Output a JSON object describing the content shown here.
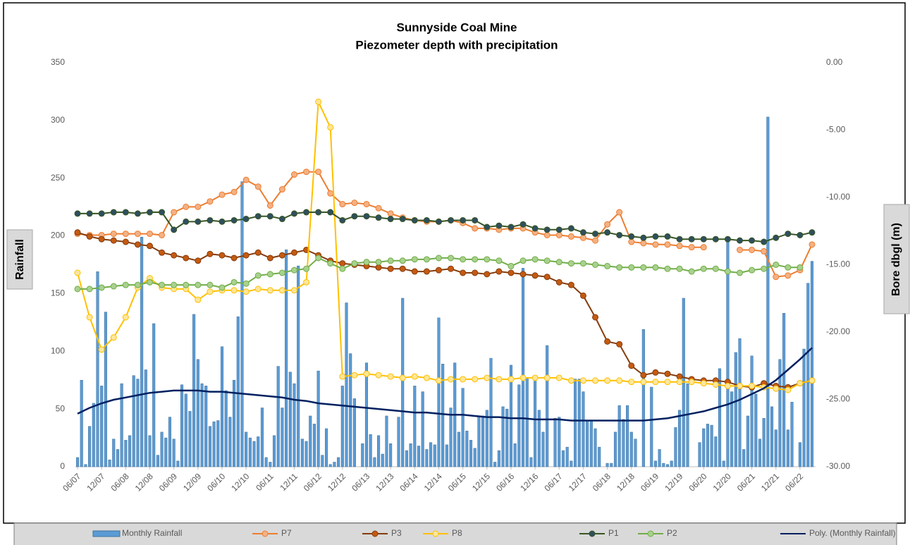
{
  "chart_data": {
    "type": "bar-line",
    "title": "Sunnyside Coal Mine",
    "subtitle": "Piezometer depth with precipitation",
    "ylabel": "Rainfall",
    "y2label": "Bore dbgl (m)",
    "grid": false,
    "legend": "bottom",
    "ylim": [
      0,
      350
    ],
    "yticks": [
      0,
      50,
      100,
      150,
      200,
      250,
      300,
      350
    ],
    "y2lim": [
      -30,
      0
    ],
    "y2ticks": [
      {
        "value": 0,
        "label": "0.00"
      },
      {
        "value": -5,
        "label": "-5.00"
      },
      {
        "value": -10,
        "label": "-10.00"
      },
      {
        "value": -15,
        "label": "-15.00"
      },
      {
        "value": -20,
        "label": "-20.00"
      },
      {
        "value": -25,
        "label": "-25.00"
      },
      {
        "value": -30,
        "label": "-30.00"
      }
    ],
    "categories": [
      "06/07",
      null,
      null,
      null,
      null,
      null,
      "12/07",
      null,
      null,
      null,
      null,
      null,
      "06/08",
      null,
      null,
      null,
      null,
      null,
      "12/08",
      null,
      null,
      null,
      null,
      null,
      "06/09",
      null,
      null,
      null,
      null,
      null,
      "12/09",
      null,
      null,
      null,
      null,
      null,
      "06/10",
      null,
      null,
      null,
      null,
      null,
      "12/10",
      null,
      null,
      null,
      null,
      null,
      "06/11",
      null,
      null,
      null,
      null,
      null,
      "12/11",
      null,
      null,
      null,
      null,
      null,
      "06/12",
      null,
      null,
      null,
      null,
      null,
      "12/12",
      null,
      null,
      null,
      null,
      null,
      "06/13",
      null,
      null,
      null,
      null,
      null,
      "12/13",
      null,
      null,
      null,
      null,
      null,
      "06/14",
      null,
      null,
      null,
      null,
      null,
      "12/14",
      null,
      null,
      null,
      null,
      null,
      "06/15",
      null,
      null,
      null,
      null,
      null,
      "12/15",
      null,
      null,
      null,
      null,
      null,
      "06/16",
      null,
      null,
      null,
      null,
      null,
      "12/16",
      null,
      null,
      null,
      null,
      null,
      "06/17",
      null,
      null,
      null,
      null,
      null,
      "12/17",
      null,
      null,
      null,
      null,
      null,
      "06/18",
      null,
      null,
      null,
      null,
      null,
      "12/18",
      null,
      null,
      null,
      null,
      null,
      "06/19",
      null,
      null,
      null,
      null,
      null,
      "12/19",
      null,
      null,
      null,
      null,
      null,
      "06/20",
      null,
      null,
      null,
      null,
      null,
      "12/20",
      null,
      null,
      null,
      null,
      null,
      "06/21",
      null,
      null,
      null,
      null,
      null,
      "12/21",
      null,
      null,
      null,
      null,
      null,
      "06/22",
      null,
      null,
      null
    ],
    "x": [
      "06/07",
      "09/07",
      "12/07",
      "03/08",
      "06/08",
      "09/08",
      "12/08",
      "03/09",
      "06/09",
      "09/09",
      "12/09",
      "03/10",
      "06/10",
      "09/10",
      "12/10",
      "03/11",
      "06/11",
      "09/11",
      "12/11",
      "03/12",
      "06/12",
      "09/12",
      "12/12",
      "03/13",
      "06/13",
      "09/13",
      "12/13",
      "03/14",
      "06/14",
      "09/14",
      "12/14",
      "03/15",
      "06/15",
      "09/15",
      "12/15",
      "03/16",
      "06/16",
      "09/16",
      "12/16",
      "03/17",
      "06/17",
      "09/17",
      "12/17",
      "03/18",
      "06/18",
      "09/18",
      "12/18",
      "03/19",
      "06/19",
      "09/19",
      "12/19",
      "03/20",
      "06/20",
      "09/20",
      "12/20",
      "03/21",
      "06/21",
      "09/21",
      "12/21",
      "03/22",
      "06/22",
      "09/22"
    ],
    "series": [
      {
        "name": "Monthly Rainfall",
        "type": "bar",
        "axis": "y",
        "color": "#5b9bd5",
        "values": [
          8,
          75,
          2,
          35,
          55,
          169,
          70,
          134,
          6,
          24,
          15,
          72,
          23,
          27,
          79,
          76,
          199,
          84,
          27,
          124,
          10,
          30,
          25,
          43,
          24,
          5,
          71,
          63,
          48,
          132,
          93,
          72,
          70,
          35,
          39,
          40,
          104,
          66,
          43,
          75,
          130,
          247,
          30,
          25,
          22,
          26,
          51,
          8,
          4,
          27,
          87,
          51,
          188,
          82,
          72,
          174,
          24,
          22,
          44,
          37,
          83,
          10,
          33,
          2,
          4,
          8,
          70,
          142,
          98,
          59,
          0,
          20,
          90,
          28,
          8,
          27,
          11,
          44,
          20,
          0,
          43,
          146,
          14,
          20,
          70,
          18,
          65,
          15,
          21,
          19,
          129,
          89,
          19,
          51,
          90,
          30,
          68,
          31,
          23,
          16,
          44,
          44,
          49,
          94,
          4,
          14,
          52,
          50,
          88,
          20,
          71,
          172,
          77,
          8,
          79,
          49,
          30,
          105,
          0,
          42,
          43,
          14,
          17,
          5,
          76,
          76,
          65,
          40,
          40,
          33,
          17,
          0,
          3,
          3,
          30,
          53,
          41,
          53,
          30,
          24,
          0,
          119,
          0,
          69,
          5,
          15,
          3,
          2,
          5,
          34,
          49,
          146,
          72,
          0,
          0,
          21,
          33,
          37,
          36,
          26,
          85,
          5,
          196,
          65,
          99,
          111,
          15,
          44,
          96,
          63,
          24,
          42,
          303,
          52,
          32,
          93,
          133,
          32,
          56,
          0,
          21,
          102,
          159,
          178
        ]
      },
      {
        "name": "P7",
        "type": "line",
        "axis": "y2",
        "color": "#ed7d31",
        "marker_color": "#f4b183",
        "values": [
          -12.7,
          -12.8,
          -12.8,
          -12.7,
          -12.7,
          -12.7,
          -12.7,
          -12.8,
          -11.1,
          -10.7,
          -10.7,
          -10.3,
          -9.8,
          -9.6,
          -8.7,
          -9.2,
          -10.6,
          -9.4,
          -8.3,
          -8.1,
          -8.1,
          -9.7,
          -10.5,
          -10.4,
          -10.5,
          -10.8,
          -11.2,
          -11.5,
          -11.7,
          -11.8,
          -11.8,
          -11.7,
          -11.9,
          -12.3,
          -12.3,
          -12.4,
          -12.3,
          -12.3,
          -12.6,
          -12.8,
          -12.8,
          -12.9,
          -13.0,
          -13.2,
          -12.0,
          -11.1,
          -13.3,
          -13.4,
          -13.5,
          -13.5,
          -13.6,
          -13.7,
          -13.7,
          null,
          null,
          -13.9,
          -13.9,
          -14.0,
          -15.9,
          -15.8,
          -15.4,
          -13.5
        ]
      },
      {
        "name": "P3",
        "type": "line",
        "axis": "y2",
        "color": "#843c0c",
        "marker_color": "#c55a11",
        "values": [
          -12.6,
          -12.9,
          -13.1,
          -13.2,
          -13.3,
          -13.5,
          -13.6,
          -14.1,
          -14.3,
          -14.5,
          -14.7,
          -14.2,
          -14.3,
          -14.5,
          -14.3,
          -14.1,
          -14.5,
          -14.3,
          -14.1,
          -13.9,
          -14.3,
          -14.7,
          -14.9,
          -15.0,
          -15.1,
          -15.2,
          -15.3,
          -15.3,
          -15.5,
          -15.5,
          -15.4,
          -15.3,
          -15.6,
          -15.6,
          -15.7,
          -15.5,
          -15.6,
          -15.7,
          -15.8,
          -15.9,
          -16.3,
          -16.5,
          -17.3,
          -18.9,
          -20.7,
          -20.9,
          -22.5,
          -23.2,
          -23.0,
          -23.1,
          -23.3,
          -23.5,
          -23.6,
          -23.6,
          -23.7,
          -24.0,
          -24.1,
          -23.8,
          -24.0,
          -24.1,
          -23.8,
          -23.6
        ]
      },
      {
        "name": "P8",
        "type": "line",
        "axis": "y2",
        "color": "#ffc000",
        "marker_color": "#ffe699",
        "values": [
          -15.6,
          -18.9,
          -21.3,
          -20.4,
          -18.9,
          -16.7,
          -16.0,
          -16.7,
          -16.8,
          -16.8,
          -17.6,
          -17.0,
          -16.9,
          -16.9,
          -17.0,
          -16.8,
          -16.9,
          -16.9,
          -16.9,
          -16.3,
          -2.9,
          -4.8,
          -23.3,
          -23.2,
          -23.1,
          -23.2,
          -23.3,
          -23.4,
          -23.3,
          -23.4,
          -23.6,
          -23.5,
          -23.5,
          -23.5,
          -23.4,
          -23.5,
          -23.5,
          -23.4,
          -23.4,
          -23.4,
          -23.4,
          -23.6,
          -23.6,
          -23.6,
          -23.6,
          -23.6,
          -23.7,
          -23.7,
          -23.7,
          -23.7,
          -23.7,
          -23.7,
          -23.8,
          -23.9,
          -24.0,
          -24.0,
          -24.0,
          -24.1,
          -24.2,
          -24.3,
          -23.8,
          -23.6
        ]
      },
      {
        "name": "P1",
        "type": "line",
        "axis": "y2",
        "color": "#375623",
        "marker_color": "#2f4f5f",
        "values": [
          -11.2,
          -11.2,
          -11.2,
          -11.1,
          -11.1,
          -11.2,
          -11.1,
          -11.1,
          -12.4,
          -11.8,
          -11.8,
          -11.7,
          -11.8,
          -11.7,
          -11.6,
          -11.4,
          -11.4,
          -11.6,
          -11.2,
          -11.1,
          -11.1,
          -11.1,
          -11.7,
          -11.4,
          -11.4,
          -11.5,
          -11.6,
          -11.6,
          -11.7,
          -11.7,
          -11.8,
          -11.7,
          -11.7,
          -11.7,
          -12.2,
          -12.1,
          -12.2,
          -12.0,
          -12.3,
          -12.4,
          -12.4,
          -12.3,
          -12.6,
          -12.7,
          -12.6,
          -12.8,
          -12.9,
          -13.0,
          -12.9,
          -12.9,
          -13.1,
          -13.1,
          -13.1,
          -13.1,
          -13.1,
          -13.2,
          -13.2,
          -13.3,
          -13.0,
          -12.7,
          -12.8,
          -12.6
        ]
      },
      {
        "name": "P2",
        "type": "line",
        "axis": "y2",
        "color": "#70ad47",
        "marker_color": "#a9d18e",
        "values": [
          -16.8,
          -16.8,
          -16.7,
          -16.6,
          -16.5,
          -16.5,
          -16.3,
          -16.5,
          -16.5,
          -16.5,
          -16.5,
          -16.5,
          -16.7,
          -16.3,
          -16.4,
          -15.8,
          -15.7,
          -15.6,
          -15.4,
          -15.3,
          -14.5,
          -14.9,
          -15.3,
          -14.9,
          -14.8,
          -14.8,
          -14.7,
          -14.7,
          -14.6,
          -14.6,
          -14.5,
          -14.5,
          -14.6,
          -14.6,
          -14.6,
          -14.7,
          -15.1,
          -14.7,
          -14.6,
          -14.7,
          -14.8,
          -14.9,
          -14.9,
          -15.0,
          -15.1,
          -15.2,
          -15.2,
          -15.2,
          -15.2,
          -15.3,
          -15.3,
          -15.5,
          -15.3,
          -15.3,
          -15.5,
          -15.6,
          -15.4,
          -15.3,
          -15.0,
          -15.2,
          -15.2,
          null
        ]
      },
      {
        "name": "Poly. (Monthly Rainfall)",
        "type": "line",
        "axis": "y",
        "color": "#002060",
        "values": [
          46,
          51,
          55,
          58,
          60,
          62,
          64,
          65,
          66,
          66,
          66,
          65,
          65,
          64,
          63,
          62,
          61,
          60,
          58,
          57,
          55,
          54,
          53,
          52,
          51,
          50,
          49,
          48,
          47,
          47,
          46,
          45,
          45,
          44,
          43,
          43,
          42,
          42,
          41,
          41,
          41,
          40,
          40,
          40,
          40,
          40,
          40,
          40,
          41,
          42,
          44,
          46,
          48,
          51,
          54,
          58,
          63,
          68,
          75,
          84,
          93,
          103
        ]
      }
    ]
  }
}
